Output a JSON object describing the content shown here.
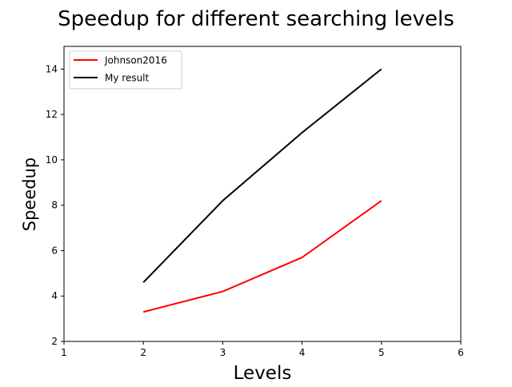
{
  "chart_data": {
    "type": "line",
    "title": "Speedup for different searching levels",
    "xlabel": "Levels",
    "ylabel": "Speedup",
    "xlim": [
      1,
      6
    ],
    "ylim": [
      2,
      15
    ],
    "xticks": [
      1,
      2,
      3,
      4,
      5,
      6
    ],
    "yticks": [
      2,
      4,
      6,
      8,
      10,
      12,
      14
    ],
    "grid": false,
    "legend_position": "top-left",
    "x": [
      2,
      3,
      4,
      5
    ],
    "series": [
      {
        "name": "Johnson2016",
        "color": "#ff0000",
        "values": [
          3.3,
          4.2,
          5.7,
          8.2
        ]
      },
      {
        "name": "My result",
        "color": "#000000",
        "values": [
          4.6,
          8.2,
          11.2,
          14.0
        ]
      }
    ]
  }
}
